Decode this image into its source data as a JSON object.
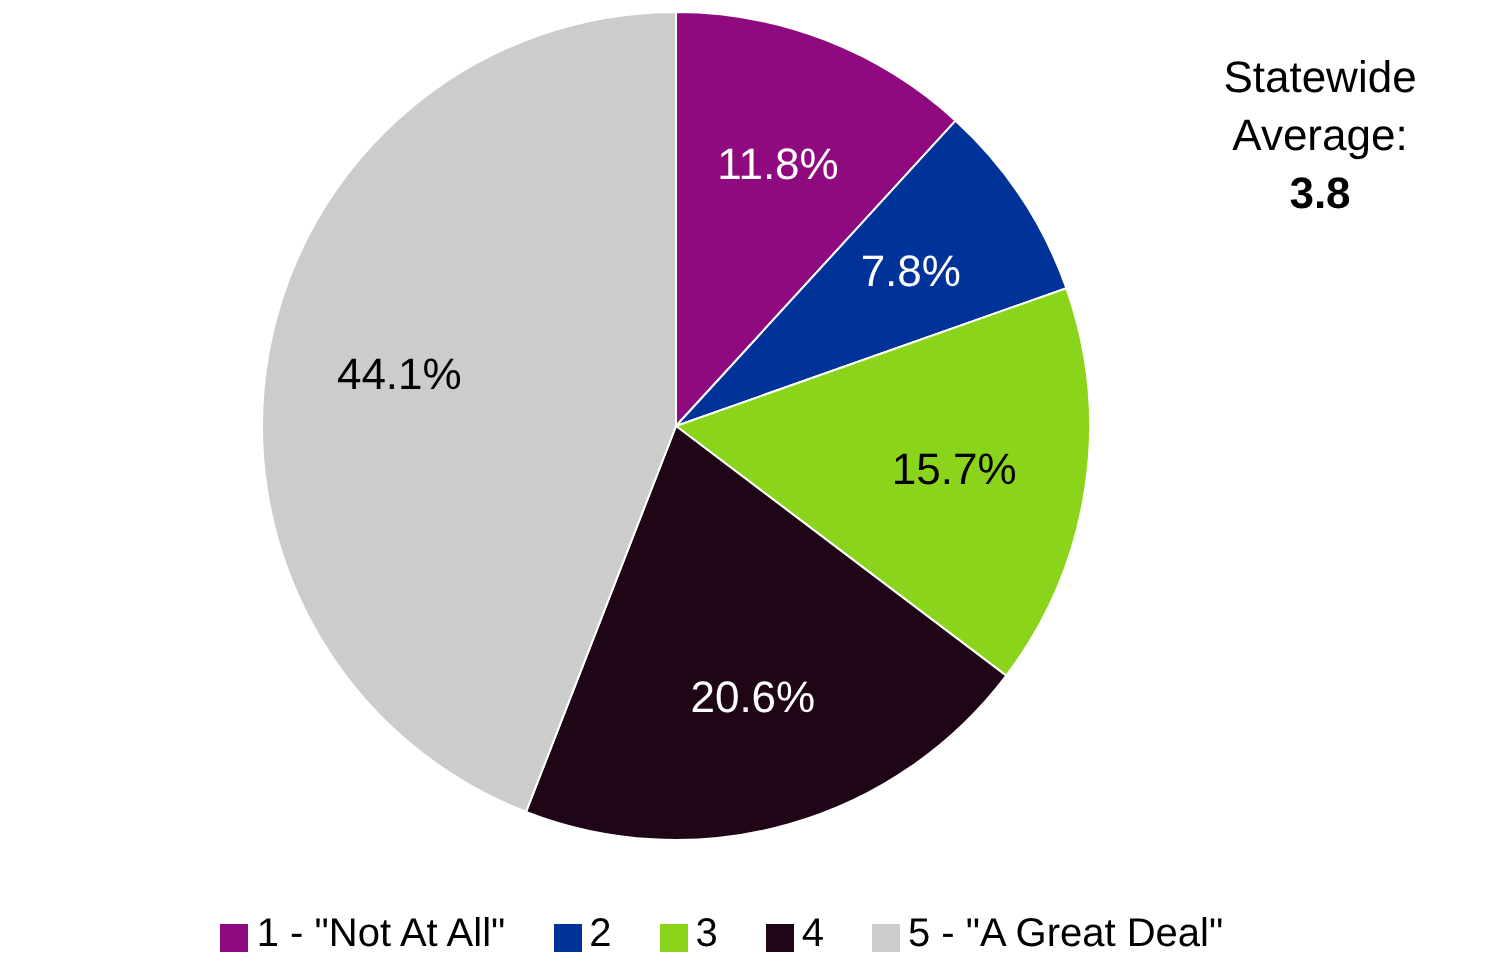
{
  "chart_data": {
    "type": "pie",
    "categories": [
      "1 - \"Not At All\"",
      "2",
      "3",
      "4",
      "5 - \"A Great Deal\""
    ],
    "values": [
      11.8,
      7.8,
      15.7,
      20.6,
      44.1
    ],
    "value_labels": [
      "11.8%",
      "7.8%",
      "15.7%",
      "20.6%",
      "44.1%"
    ],
    "colors": [
      "#8e0a7e",
      "#003399",
      "#8ad41c",
      "#1f0617",
      "#cccccc"
    ],
    "annotations": [
      "Statewide Average:",
      "3.8"
    ],
    "legend": "bottom"
  }
}
